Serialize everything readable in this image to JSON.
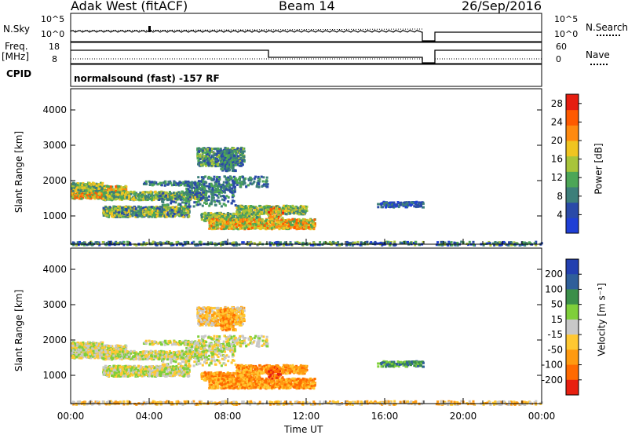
{
  "header": {
    "station": "Adak West (fitACF)",
    "beam": "Beam 14",
    "date": "26/Sep/2016"
  },
  "strips": {
    "nsky_label": "N.Sky",
    "nsky_ticks": [
      "10^5",
      "10^0"
    ],
    "nsearch_label": "N.Search",
    "nsearch_ticks": [
      "10^5",
      "10^0"
    ],
    "freq_label": "Freq.",
    "freq_unit": "[MHz]",
    "freq_ticks": [
      "18",
      "8"
    ],
    "nave_label": "Nave",
    "nave_ticks": [
      "60",
      "0"
    ],
    "cpid_label": "CPID",
    "cpid_text": "normalsound (fast) -157 RF"
  },
  "colors": {
    "power_scale": [
      "#1f3fd6",
      "#2a4aa8",
      "#3d7f7a",
      "#4da657",
      "#a8c43a",
      "#f0c420",
      "#ff8a10",
      "#ff5a00",
      "#e61e10"
    ],
    "velocity_scale": [
      "#2340b0",
      "#2f5f9a",
      "#3b8f4a",
      "#7fcf3a",
      "#c8c8c8",
      "#ffc832",
      "#ff9a10",
      "#ff6a00",
      "#e82010"
    ]
  },
  "chart_data": [
    {
      "type": "heatmap",
      "panel": "power",
      "ylabel": "Slant Range [km]",
      "y_ticks": [
        "1000",
        "2000",
        "3000",
        "4000"
      ],
      "ylim": [
        200,
        4600
      ],
      "colorbar_label": "Power [dB]",
      "colorbar_ticks": [
        "4",
        "8",
        "12",
        "16",
        "20",
        "24",
        "28"
      ],
      "colorbar_range": [
        0,
        30
      ]
    },
    {
      "type": "heatmap",
      "panel": "velocity",
      "ylabel": "Slant Range [km]",
      "y_ticks": [
        "1000",
        "2000",
        "3000",
        "4000"
      ],
      "ylim": [
        200,
        4600
      ],
      "colorbar_label": "Velocity [m s⁻¹]",
      "colorbar_ticks": [
        "-200",
        "-100",
        "-50",
        "-15",
        "15",
        "50",
        "100",
        "200"
      ]
    }
  ],
  "x_axis": {
    "label": "Time UT",
    "ticks": [
      "00:00",
      "04:00",
      "08:00",
      "12:00",
      "16:00",
      "20:00",
      "00:00"
    ]
  }
}
